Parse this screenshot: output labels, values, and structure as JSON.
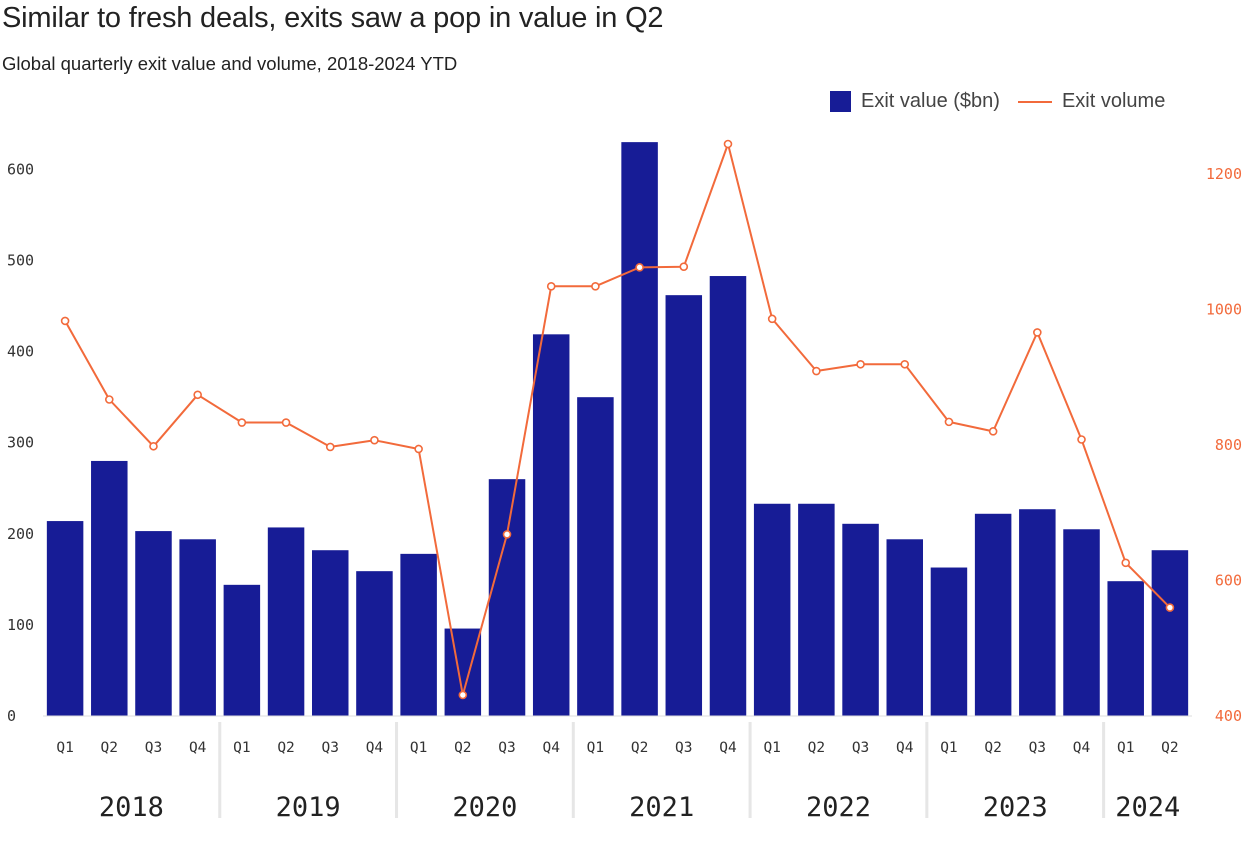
{
  "header": {
    "title": "Similar to fresh deals, exits saw a pop in value in Q2",
    "subtitle": "Global quarterly exit value and volume, 2018-2024 YTD"
  },
  "legend": {
    "value_label": "Exit value  ($bn)",
    "volume_label": "Exit volume"
  },
  "colors": {
    "bar": "#171c96",
    "line": "#f26a3b"
  },
  "chart_data": {
    "type": "bar+line",
    "title": "Similar to fresh deals, exits saw a pop in value in Q2",
    "subtitle": "Global quarterly exit value and volume, 2018-2024 YTD",
    "categories": [
      "Q1",
      "Q2",
      "Q3",
      "Q4",
      "Q1",
      "Q2",
      "Q3",
      "Q4",
      "Q1",
      "Q2",
      "Q3",
      "Q4",
      "Q1",
      "Q2",
      "Q3",
      "Q4",
      "Q1",
      "Q2",
      "Q3",
      "Q4",
      "Q1",
      "Q2",
      "Q3",
      "Q4",
      "Q1",
      "Q2"
    ],
    "years": [
      {
        "label": "2018",
        "start": 0,
        "count": 4
      },
      {
        "label": "2019",
        "start": 4,
        "count": 4
      },
      {
        "label": "2020",
        "start": 8,
        "count": 4
      },
      {
        "label": "2021",
        "start": 12,
        "count": 4
      },
      {
        "label": "2022",
        "start": 16,
        "count": 4
      },
      {
        "label": "2023",
        "start": 20,
        "count": 4
      },
      {
        "label": "2024",
        "start": 24,
        "count": 2
      }
    ],
    "series": [
      {
        "name": "Exit value  ($bn)",
        "type": "bar",
        "axis": "left",
        "values": [
          214,
          280,
          203,
          194,
          144,
          207,
          182,
          159,
          178,
          96,
          260,
          419,
          350,
          630,
          462,
          483,
          233,
          233,
          211,
          194,
          163,
          222,
          227,
          205,
          148,
          182
        ]
      },
      {
        "name": "Exit volume",
        "type": "line",
        "axis": "right",
        "values": [
          983,
          867,
          798,
          874,
          833,
          833,
          797,
          807,
          794,
          431,
          668,
          1034,
          1034,
          1062,
          1063,
          1244,
          986,
          909,
          919,
          919,
          834,
          820,
          966,
          808,
          626,
          560
        ]
      }
    ],
    "yleft": {
      "min": 0,
      "max": 651,
      "ticks": [
        0,
        100,
        200,
        300,
        400,
        500,
        600
      ]
    },
    "yright": {
      "min": 400,
      "max": 1275,
      "ticks": [
        400,
        600,
        800,
        1000,
        1200
      ]
    },
    "grid": false,
    "legend_position": "top-right"
  }
}
